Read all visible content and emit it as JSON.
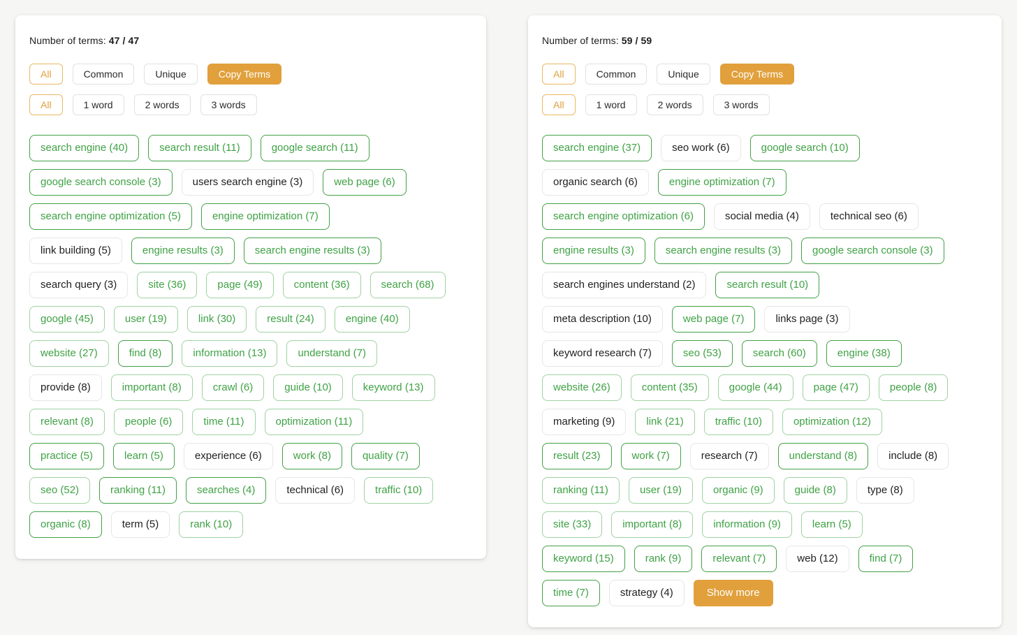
{
  "colors": {
    "accent": "#e1a03c",
    "green_text": "#3fa245",
    "green_border_strong": "#43a047",
    "green_border_light": "#9fd2a2",
    "plain_border": "#e6e6e6",
    "page_background": "#f6f6f5"
  },
  "panels": [
    {
      "side": "left",
      "count_label": "Number of terms:",
      "count_value": "47 / 47",
      "filters_row1": [
        {
          "label": "All",
          "style": "accent-outline"
        },
        {
          "label": "Common",
          "style": "default"
        },
        {
          "label": "Unique",
          "style": "default"
        },
        {
          "label": "Copy Terms",
          "style": "accent-fill"
        }
      ],
      "filters_row2": [
        {
          "label": "All",
          "style": "accent-outline"
        },
        {
          "label": "1 word",
          "style": "default"
        },
        {
          "label": "2 words",
          "style": "default"
        },
        {
          "label": "3 words",
          "style": "default"
        }
      ],
      "term_rows": [
        [
          {
            "label": "search engine (40)",
            "style": "green"
          },
          {
            "label": "search result (11)",
            "style": "green"
          },
          {
            "label": "google search (11)",
            "style": "green"
          }
        ],
        [
          {
            "label": "google search console (3)",
            "style": "green"
          },
          {
            "label": "users search engine (3)",
            "style": "plain"
          },
          {
            "label": "web page (6)",
            "style": "green"
          }
        ],
        [
          {
            "label": "search engine optimization (5)",
            "style": "green"
          },
          {
            "label": "engine optimization (7)",
            "style": "green"
          }
        ],
        [
          {
            "label": "link building (5)",
            "style": "plain"
          },
          {
            "label": "engine results (3)",
            "style": "green"
          },
          {
            "label": "search engine results (3)",
            "style": "green"
          }
        ],
        [
          {
            "label": "search query (3)",
            "style": "plain"
          },
          {
            "label": "site (36)",
            "style": "green-light"
          },
          {
            "label": "page (49)",
            "style": "green-light"
          },
          {
            "label": "content (36)",
            "style": "green-light"
          },
          {
            "label": "search (68)",
            "style": "green-light"
          }
        ],
        [
          {
            "label": "google (45)",
            "style": "green-light"
          },
          {
            "label": "user (19)",
            "style": "green-light"
          },
          {
            "label": "link (30)",
            "style": "green-light"
          },
          {
            "label": "result (24)",
            "style": "green-light"
          },
          {
            "label": "engine (40)",
            "style": "green-light"
          }
        ],
        [
          {
            "label": "website (27)",
            "style": "green-light"
          },
          {
            "label": "find (8)",
            "style": "green"
          },
          {
            "label": "information (13)",
            "style": "green-light"
          },
          {
            "label": "understand (7)",
            "style": "green-light"
          }
        ],
        [
          {
            "label": "provide (8)",
            "style": "plain"
          },
          {
            "label": "important (8)",
            "style": "green-light"
          },
          {
            "label": "crawl (6)",
            "style": "green-light"
          },
          {
            "label": "guide (10)",
            "style": "green-light"
          },
          {
            "label": "keyword (13)",
            "style": "green-light"
          }
        ],
        [
          {
            "label": "relevant (8)",
            "style": "green-light"
          },
          {
            "label": "people (6)",
            "style": "green-light"
          },
          {
            "label": "time (11)",
            "style": "green-light"
          },
          {
            "label": "optimization (11)",
            "style": "green-light"
          }
        ],
        [
          {
            "label": "practice (5)",
            "style": "green"
          },
          {
            "label": "learn (5)",
            "style": "green"
          },
          {
            "label": "experience (6)",
            "style": "plain"
          },
          {
            "label": "work (8)",
            "style": "green"
          },
          {
            "label": "quality (7)",
            "style": "green"
          }
        ],
        [
          {
            "label": "seo (52)",
            "style": "green-light"
          },
          {
            "label": "ranking (11)",
            "style": "green"
          },
          {
            "label": "searches (4)",
            "style": "green"
          },
          {
            "label": "technical (6)",
            "style": "plain"
          },
          {
            "label": "traffic (10)",
            "style": "green-light"
          }
        ],
        [
          {
            "label": "organic (8)",
            "style": "green"
          },
          {
            "label": "term (5)",
            "style": "plain"
          },
          {
            "label": "rank (10)",
            "style": "green-light"
          }
        ]
      ],
      "show_more_label": null
    },
    {
      "side": "right",
      "count_label": "Number of terms:",
      "count_value": "59 / 59",
      "filters_row1": [
        {
          "label": "All",
          "style": "accent-outline"
        },
        {
          "label": "Common",
          "style": "default"
        },
        {
          "label": "Unique",
          "style": "default"
        },
        {
          "label": "Copy Terms",
          "style": "accent-fill"
        }
      ],
      "filters_row2": [
        {
          "label": "All",
          "style": "accent-outline"
        },
        {
          "label": "1 word",
          "style": "default"
        },
        {
          "label": "2 words",
          "style": "default"
        },
        {
          "label": "3 words",
          "style": "default"
        }
      ],
      "term_rows": [
        [
          {
            "label": "search engine (37)",
            "style": "green"
          },
          {
            "label": "seo work (6)",
            "style": "plain"
          },
          {
            "label": "google search (10)",
            "style": "green"
          }
        ],
        [
          {
            "label": "organic search (6)",
            "style": "plain"
          },
          {
            "label": "engine optimization (7)",
            "style": "green"
          }
        ],
        [
          {
            "label": "search engine optimization (6)",
            "style": "green"
          },
          {
            "label": "social media (4)",
            "style": "plain"
          },
          {
            "label": "technical seo (6)",
            "style": "plain"
          }
        ],
        [
          {
            "label": "engine results (3)",
            "style": "green"
          },
          {
            "label": "search engine results (3)",
            "style": "green"
          },
          {
            "label": "google search console (3)",
            "style": "green"
          }
        ],
        [
          {
            "label": "search engines understand (2)",
            "style": "plain"
          },
          {
            "label": "search result (10)",
            "style": "green"
          }
        ],
        [
          {
            "label": "meta description (10)",
            "style": "plain"
          },
          {
            "label": "web page (7)",
            "style": "green"
          },
          {
            "label": "links page (3)",
            "style": "plain"
          }
        ],
        [
          {
            "label": "keyword research (7)",
            "style": "plain"
          },
          {
            "label": "seo (53)",
            "style": "green"
          },
          {
            "label": "search (60)",
            "style": "green"
          },
          {
            "label": "engine (38)",
            "style": "green"
          }
        ],
        [
          {
            "label": "website (26)",
            "style": "green-light"
          },
          {
            "label": "content (35)",
            "style": "green-light"
          },
          {
            "label": "google (44)",
            "style": "green-light"
          },
          {
            "label": "page (47)",
            "style": "green-light"
          },
          {
            "label": "people (8)",
            "style": "green-light"
          }
        ],
        [
          {
            "label": "marketing (9)",
            "style": "plain"
          },
          {
            "label": "link (21)",
            "style": "green-light"
          },
          {
            "label": "traffic (10)",
            "style": "green-light"
          },
          {
            "label": "optimization (12)",
            "style": "green-light"
          }
        ],
        [
          {
            "label": "result (23)",
            "style": "green"
          },
          {
            "label": "work (7)",
            "style": "green"
          },
          {
            "label": "research (7)",
            "style": "plain"
          },
          {
            "label": "understand (8)",
            "style": "green"
          },
          {
            "label": "include (8)",
            "style": "plain"
          }
        ],
        [
          {
            "label": "ranking (11)",
            "style": "green-light"
          },
          {
            "label": "user (19)",
            "style": "green-light"
          },
          {
            "label": "organic (9)",
            "style": "green-light"
          },
          {
            "label": "guide (8)",
            "style": "green-light"
          },
          {
            "label": "type (8)",
            "style": "plain"
          }
        ],
        [
          {
            "label": "site (33)",
            "style": "green-light"
          },
          {
            "label": "important (8)",
            "style": "green-light"
          },
          {
            "label": "information (9)",
            "style": "green-light"
          },
          {
            "label": "learn (5)",
            "style": "green-light"
          }
        ],
        [
          {
            "label": "keyword (15)",
            "style": "green"
          },
          {
            "label": "rank (9)",
            "style": "green"
          },
          {
            "label": "relevant (7)",
            "style": "green"
          },
          {
            "label": "web (12)",
            "style": "plain"
          },
          {
            "label": "find (7)",
            "style": "green"
          }
        ],
        [
          {
            "label": "time (7)",
            "style": "green"
          },
          {
            "label": "strategy (4)",
            "style": "plain"
          }
        ]
      ],
      "show_more_label": "Show more"
    }
  ]
}
